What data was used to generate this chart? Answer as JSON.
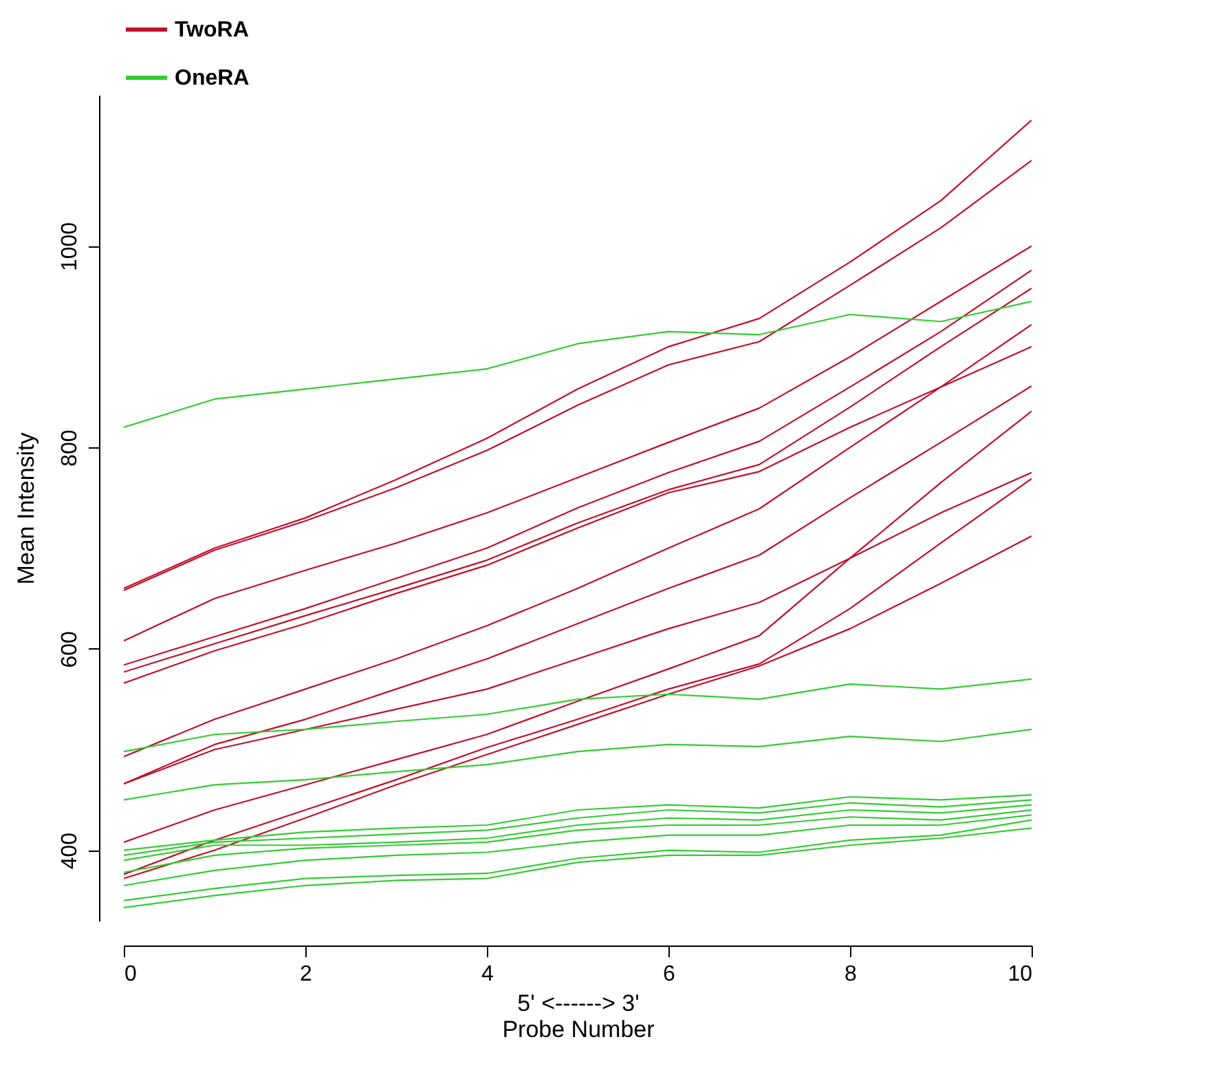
{
  "chart_data": {
    "type": "line",
    "xlabel": "Probe Number",
    "ylabel": "Mean Intensity",
    "annotations": [
      "5' <------> 3'"
    ],
    "x": [
      0,
      1,
      2,
      3,
      4,
      5,
      6,
      7,
      8,
      9,
      10
    ],
    "xlim": [
      0,
      10
    ],
    "xticks": [
      0,
      2,
      4,
      6,
      8,
      10
    ],
    "ylim": [
      330,
      1150
    ],
    "yticks": [
      400,
      600,
      800,
      1000
    ],
    "grid": false,
    "legend": "top",
    "line_style": "solid",
    "marker": "none",
    "series": [
      {
        "name": "TwoRA",
        "color": "#c0102a",
        "values": [
          660,
          700,
          730,
          768,
          809,
          858,
          900,
          928,
          984,
          1045,
          1125
        ]
      },
      {
        "color": "#c0102a",
        "values": [
          658,
          698,
          727,
          760,
          797,
          842,
          882,
          905,
          961,
          1018,
          1085
        ]
      },
      {
        "color": "#c0102a",
        "values": [
          608,
          650,
          678,
          705,
          735,
          770,
          805,
          839,
          890,
          945,
          1000
        ]
      },
      {
        "color": "#c0102a",
        "values": [
          584,
          612,
          640,
          670,
          700,
          740,
          775,
          806,
          860,
          915,
          976
        ]
      },
      {
        "color": "#c0102a",
        "values": [
          577,
          605,
          633,
          660,
          688,
          725,
          758,
          783,
          840,
          900,
          958
        ]
      },
      {
        "color": "#c0102a",
        "values": [
          566,
          598,
          625,
          655,
          683,
          720,
          755,
          776,
          820,
          860,
          900
        ]
      },
      {
        "color": "#c0102a",
        "values": [
          493,
          530,
          560,
          590,
          623,
          660,
          700,
          739,
          800,
          860,
          922
        ]
      },
      {
        "color": "#c0102a",
        "values": [
          466,
          505,
          530,
          560,
          590,
          625,
          660,
          693,
          750,
          805,
          861
        ]
      },
      {
        "color": "#c0102a",
        "values": [
          466,
          500,
          520,
          540,
          560,
          590,
          620,
          646,
          690,
          735,
          775
        ]
      },
      {
        "color": "#c0102a",
        "values": [
          408,
          440,
          465,
          490,
          515,
          548,
          580,
          613,
          690,
          765,
          836
        ]
      },
      {
        "color": "#c0102a",
        "values": [
          376,
          410,
          440,
          470,
          502,
          530,
          560,
          585,
          640,
          705,
          769
        ]
      },
      {
        "color": "#c0102a",
        "values": [
          372,
          400,
          432,
          465,
          495,
          525,
          555,
          583,
          620,
          665,
          712
        ]
      },
      {
        "name": "OneRA",
        "color": "#33cc33",
        "values": [
          820,
          848,
          858,
          868,
          878,
          903,
          915,
          912,
          932,
          925,
          945
        ]
      },
      {
        "color": "#33cc33",
        "values": [
          498,
          515,
          520,
          528,
          535,
          550,
          555,
          550,
          565,
          560,
          570
        ]
      },
      {
        "color": "#33cc33",
        "values": [
          450,
          465,
          470,
          478,
          485,
          498,
          505,
          503,
          513,
          508,
          520
        ]
      },
      {
        "color": "#33cc33",
        "values": [
          400,
          410,
          418,
          422,
          425,
          440,
          445,
          442,
          453,
          450,
          455
        ]
      },
      {
        "color": "#33cc33",
        "values": [
          395,
          408,
          412,
          416,
          420,
          432,
          440,
          437,
          447,
          443,
          450
        ]
      },
      {
        "color": "#33cc33",
        "values": [
          390,
          405,
          405,
          408,
          412,
          425,
          432,
          430,
          440,
          437,
          445
        ]
      },
      {
        "color": "#33cc33",
        "values": [
          378,
          395,
          402,
          405,
          408,
          420,
          425,
          425,
          433,
          430,
          440
        ]
      },
      {
        "color": "#33cc33",
        "values": [
          365,
          380,
          390,
          395,
          398,
          408,
          415,
          415,
          425,
          425,
          435
        ]
      },
      {
        "color": "#33cc33",
        "values": [
          350,
          362,
          372,
          375,
          377,
          392,
          400,
          398,
          410,
          415,
          430
        ]
      },
      {
        "color": "#33cc33",
        "values": [
          343,
          355,
          365,
          370,
          372,
          388,
          395,
          395,
          405,
          412,
          422
        ]
      }
    ]
  }
}
